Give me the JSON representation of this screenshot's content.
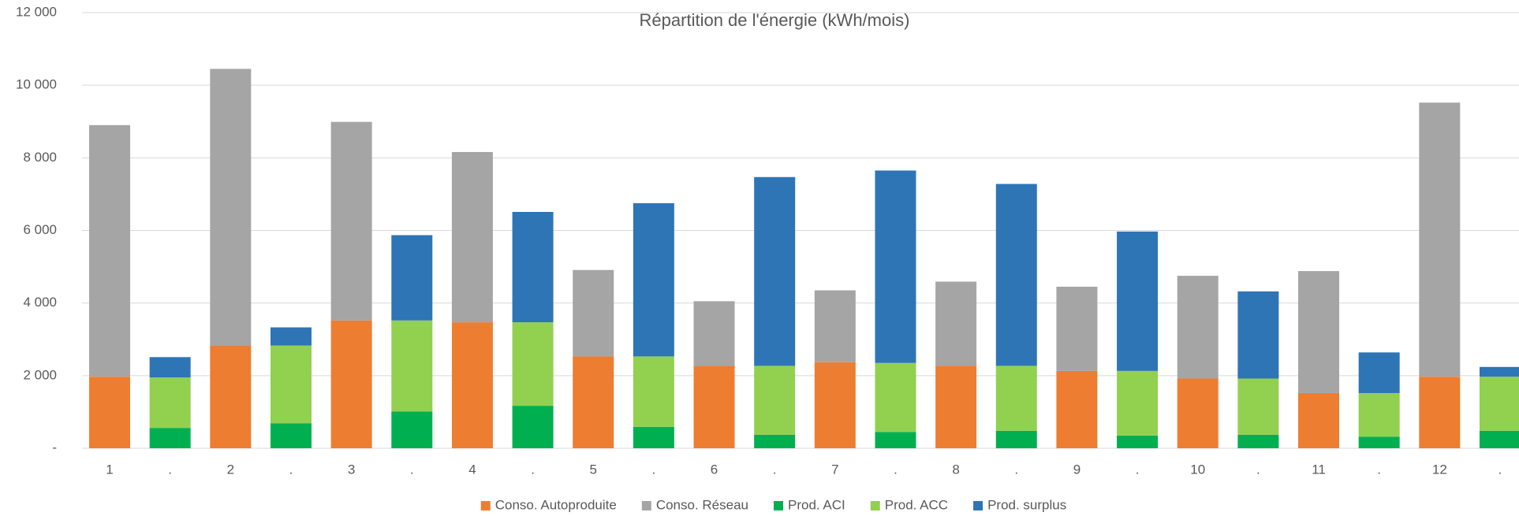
{
  "chart_data": {
    "type": "stacked_bar",
    "title": "Répartition de l'énergie (kWh/mois)",
    "categories": [
      "1",
      ".",
      "2",
      ".",
      "3",
      ".",
      "4",
      ".",
      "5",
      ".",
      "6",
      ".",
      "7",
      ".",
      "8",
      ".",
      "9",
      ".",
      "10",
      ".",
      "11",
      ".",
      "12",
      "."
    ],
    "series": [
      {
        "name": "Conso. Autoproduite",
        "color": "#ed7d31",
        "values": [
          1970,
          null,
          2830,
          null,
          3520,
          null,
          3470,
          null,
          2530,
          null,
          2270,
          null,
          2370,
          null,
          2270,
          null,
          2130,
          null,
          1920,
          null,
          1520,
          null,
          1970,
          null
        ]
      },
      {
        "name": "Conso. Réseau",
        "color": "#a5a5a5",
        "values": [
          6930,
          null,
          7620,
          null,
          5470,
          null,
          4690,
          null,
          2380,
          null,
          1780,
          null,
          1980,
          null,
          2320,
          null,
          2320,
          null,
          2830,
          null,
          3360,
          null,
          7550,
          null
        ]
      },
      {
        "name": "Prod. ACI",
        "color": "#00b050",
        "values": [
          null,
          560,
          null,
          690,
          null,
          1010,
          null,
          1170,
          null,
          590,
          null,
          370,
          null,
          450,
          null,
          480,
          null,
          350,
          null,
          370,
          null,
          320,
          null,
          480
        ]
      },
      {
        "name": "Prod. ACC",
        "color": "#92d050",
        "values": [
          null,
          1390,
          null,
          2140,
          null,
          2510,
          null,
          2300,
          null,
          1940,
          null,
          1900,
          null,
          1900,
          null,
          1790,
          null,
          1780,
          null,
          1550,
          null,
          1200,
          null,
          1490
        ]
      },
      {
        "name": "Prod. surplus",
        "color": "#2e75b6",
        "values": [
          null,
          560,
          null,
          500,
          null,
          2350,
          null,
          3040,
          null,
          4220,
          null,
          5200,
          null,
          5300,
          null,
          5010,
          null,
          3840,
          null,
          2400,
          null,
          1120,
          null,
          270
        ]
      }
    ],
    "ylim": [
      0,
      12000
    ],
    "yticks": [
      {
        "value": 0,
        "label": "-"
      },
      {
        "value": 2000,
        "label": "2 000"
      },
      {
        "value": 4000,
        "label": "4 000"
      },
      {
        "value": 6000,
        "label": "6 000"
      },
      {
        "value": 8000,
        "label": "8 000"
      },
      {
        "value": 10000,
        "label": "10 000"
      },
      {
        "value": 12000,
        "label": "12 000"
      }
    ],
    "grid": true,
    "legend": "bottom"
  }
}
